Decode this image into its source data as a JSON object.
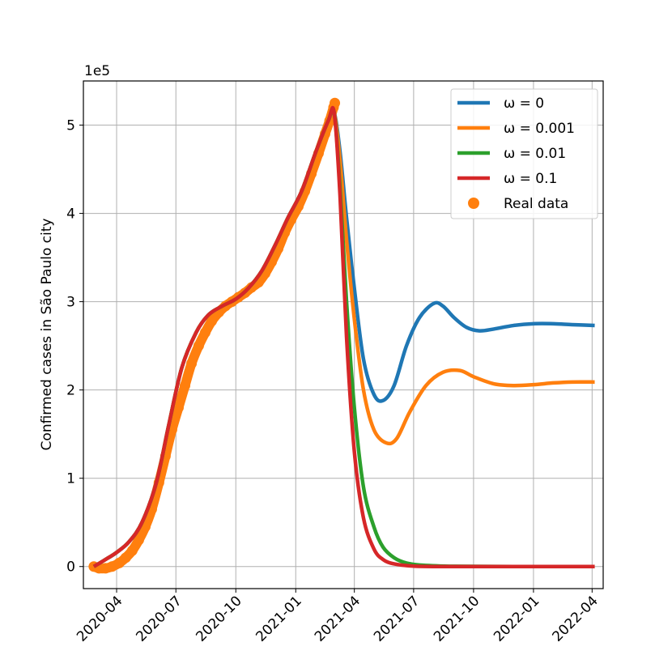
{
  "chart_data": {
    "type": "line",
    "ylabel": "Confirmed cases in São Paulo city",
    "offset_text": "1e5",
    "x_axis": {
      "type": "date",
      "range": [
        "2020-02-10",
        "2022-04-18"
      ],
      "ticks": [
        "2020-04-01",
        "2020-07-01",
        "2020-10-01",
        "2021-01-01",
        "2021-04-01",
        "2021-07-01",
        "2021-10-01",
        "2022-01-01",
        "2022-04-01"
      ],
      "tick_labels": [
        "2020-04",
        "2020-07",
        "2020-10",
        "2021-01",
        "2021-04",
        "2021-07",
        "2021-10",
        "2022-01",
        "2022-04"
      ]
    },
    "y_axis": {
      "range": [
        -0.25,
        5.5
      ],
      "ticks": [
        0,
        1,
        2,
        3,
        4,
        5
      ],
      "tick_labels": [
        "0",
        "1",
        "2",
        "3",
        "4",
        "5"
      ]
    },
    "grid": true,
    "legend_position": "top-right",
    "series": [
      {
        "name": "ω = 0",
        "kind": "line",
        "color": "#1f77b4",
        "points": [
          [
            "2020-02-26",
            0
          ],
          [
            "2020-03-15",
            0.08
          ],
          [
            "2020-04-01",
            0.16
          ],
          [
            "2020-04-20",
            0.28
          ],
          [
            "2020-05-10",
            0.5
          ],
          [
            "2020-06-01",
            0.95
          ],
          [
            "2020-06-20",
            1.6
          ],
          [
            "2020-07-10",
            2.25
          ],
          [
            "2020-08-01",
            2.65
          ],
          [
            "2020-08-20",
            2.85
          ],
          [
            "2020-09-10",
            2.95
          ],
          [
            "2020-10-01",
            3.03
          ],
          [
            "2020-10-20",
            3.15
          ],
          [
            "2020-11-10",
            3.35
          ],
          [
            "2020-12-01",
            3.65
          ],
          [
            "2020-12-20",
            3.95
          ],
          [
            "2021-01-10",
            4.25
          ],
          [
            "2021-02-01",
            4.7
          ],
          [
            "2021-02-20",
            5.05
          ],
          [
            "2021-03-01",
            5.14
          ],
          [
            "2021-03-10",
            4.7
          ],
          [
            "2021-03-20",
            3.95
          ],
          [
            "2021-04-01",
            3.15
          ],
          [
            "2021-04-15",
            2.35
          ],
          [
            "2021-05-01",
            1.95
          ],
          [
            "2021-05-15",
            1.88
          ],
          [
            "2021-06-01",
            2.05
          ],
          [
            "2021-06-20",
            2.5
          ],
          [
            "2021-07-10",
            2.82
          ],
          [
            "2021-08-01",
            2.98
          ],
          [
            "2021-08-15",
            2.95
          ],
          [
            "2021-09-01",
            2.82
          ],
          [
            "2021-09-20",
            2.71
          ],
          [
            "2021-10-10",
            2.67
          ],
          [
            "2021-11-01",
            2.69
          ],
          [
            "2021-12-01",
            2.73
          ],
          [
            "2022-01-01",
            2.75
          ],
          [
            "2022-02-01",
            2.75
          ],
          [
            "2022-03-01",
            2.74
          ],
          [
            "2022-04-05",
            2.73
          ]
        ]
      },
      {
        "name": "ω = 0.001",
        "kind": "line",
        "color": "#ff7f0e",
        "points": [
          [
            "2020-02-26",
            0
          ],
          [
            "2020-03-15",
            0.08
          ],
          [
            "2020-04-01",
            0.16
          ],
          [
            "2020-04-20",
            0.28
          ],
          [
            "2020-05-10",
            0.5
          ],
          [
            "2020-06-01",
            0.95
          ],
          [
            "2020-06-20",
            1.6
          ],
          [
            "2020-07-10",
            2.25
          ],
          [
            "2020-08-01",
            2.65
          ],
          [
            "2020-08-20",
            2.85
          ],
          [
            "2020-09-10",
            2.95
          ],
          [
            "2020-10-01",
            3.03
          ],
          [
            "2020-10-20",
            3.15
          ],
          [
            "2020-11-10",
            3.35
          ],
          [
            "2020-12-01",
            3.65
          ],
          [
            "2020-12-20",
            3.95
          ],
          [
            "2021-01-10",
            4.25
          ],
          [
            "2021-02-01",
            4.7
          ],
          [
            "2021-02-20",
            5.05
          ],
          [
            "2021-03-01",
            5.14
          ],
          [
            "2021-03-10",
            4.6
          ],
          [
            "2021-03-20",
            3.7
          ],
          [
            "2021-04-01",
            2.8
          ],
          [
            "2021-04-15",
            2.0
          ],
          [
            "2021-05-01",
            1.55
          ],
          [
            "2021-05-20",
            1.4
          ],
          [
            "2021-06-05",
            1.45
          ],
          [
            "2021-06-25",
            1.75
          ],
          [
            "2021-07-20",
            2.05
          ],
          [
            "2021-08-15",
            2.2
          ],
          [
            "2021-09-10",
            2.22
          ],
          [
            "2021-10-01",
            2.15
          ],
          [
            "2021-11-01",
            2.07
          ],
          [
            "2021-12-01",
            2.05
          ],
          [
            "2022-01-01",
            2.06
          ],
          [
            "2022-02-01",
            2.08
          ],
          [
            "2022-03-01",
            2.09
          ],
          [
            "2022-04-05",
            2.09
          ]
        ]
      },
      {
        "name": "ω = 0.01",
        "kind": "line",
        "color": "#2ca02c",
        "points": [
          [
            "2020-02-26",
            0
          ],
          [
            "2020-03-15",
            0.08
          ],
          [
            "2020-04-01",
            0.16
          ],
          [
            "2020-04-20",
            0.28
          ],
          [
            "2020-05-10",
            0.5
          ],
          [
            "2020-06-01",
            0.95
          ],
          [
            "2020-06-20",
            1.6
          ],
          [
            "2020-07-10",
            2.25
          ],
          [
            "2020-08-01",
            2.65
          ],
          [
            "2020-08-20",
            2.85
          ],
          [
            "2020-09-10",
            2.95
          ],
          [
            "2020-10-01",
            3.03
          ],
          [
            "2020-10-20",
            3.15
          ],
          [
            "2020-11-10",
            3.35
          ],
          [
            "2020-12-01",
            3.65
          ],
          [
            "2020-12-20",
            3.95
          ],
          [
            "2021-01-10",
            4.25
          ],
          [
            "2021-02-01",
            4.7
          ],
          [
            "2021-02-20",
            5.05
          ],
          [
            "2021-03-01",
            5.14
          ],
          [
            "2021-03-10",
            4.3
          ],
          [
            "2021-03-20",
            3.0
          ],
          [
            "2021-04-01",
            1.8
          ],
          [
            "2021-04-15",
            0.9
          ],
          [
            "2021-05-01",
            0.45
          ],
          [
            "2021-05-15",
            0.22
          ],
          [
            "2021-06-01",
            0.1
          ],
          [
            "2021-06-20",
            0.04
          ],
          [
            "2021-07-15",
            0.015
          ],
          [
            "2021-09-01",
            0.003
          ],
          [
            "2021-12-01",
            0
          ],
          [
            "2022-04-05",
            0
          ]
        ]
      },
      {
        "name": "ω = 0.1",
        "kind": "line",
        "color": "#d62728",
        "points": [
          [
            "2020-02-26",
            0
          ],
          [
            "2020-03-15",
            0.08
          ],
          [
            "2020-04-01",
            0.16
          ],
          [
            "2020-04-20",
            0.28
          ],
          [
            "2020-05-10",
            0.5
          ],
          [
            "2020-06-01",
            0.95
          ],
          [
            "2020-06-20",
            1.6
          ],
          [
            "2020-07-10",
            2.25
          ],
          [
            "2020-08-01",
            2.65
          ],
          [
            "2020-08-20",
            2.85
          ],
          [
            "2020-09-10",
            2.95
          ],
          [
            "2020-10-01",
            3.03
          ],
          [
            "2020-10-20",
            3.15
          ],
          [
            "2020-11-10",
            3.35
          ],
          [
            "2020-12-01",
            3.65
          ],
          [
            "2020-12-20",
            3.95
          ],
          [
            "2021-01-10",
            4.25
          ],
          [
            "2021-02-01",
            4.7
          ],
          [
            "2021-02-20",
            5.05
          ],
          [
            "2021-03-01",
            5.14
          ],
          [
            "2021-03-10",
            4.2
          ],
          [
            "2021-03-20",
            2.6
          ],
          [
            "2021-04-01",
            1.3
          ],
          [
            "2021-04-15",
            0.55
          ],
          [
            "2021-05-01",
            0.2
          ],
          [
            "2021-05-15",
            0.08
          ],
          [
            "2021-06-01",
            0.03
          ],
          [
            "2021-07-01",
            0.005
          ],
          [
            "2021-09-01",
            0
          ],
          [
            "2022-04-05",
            0
          ]
        ]
      },
      {
        "name": "Real data",
        "kind": "scatter",
        "color": "#ff7f0e",
        "points": [
          [
            "2020-02-26",
            0
          ],
          [
            "2020-03-05",
            -0.02
          ],
          [
            "2020-03-15",
            -0.02
          ],
          [
            "2020-03-25",
            0.0
          ],
          [
            "2020-04-05",
            0.04
          ],
          [
            "2020-04-15",
            0.1
          ],
          [
            "2020-04-25",
            0.18
          ],
          [
            "2020-05-05",
            0.3
          ],
          [
            "2020-05-15",
            0.45
          ],
          [
            "2020-05-25",
            0.65
          ],
          [
            "2020-06-05",
            0.95
          ],
          [
            "2020-06-15",
            1.25
          ],
          [
            "2020-06-25",
            1.55
          ],
          [
            "2020-07-05",
            1.8
          ],
          [
            "2020-07-15",
            2.05
          ],
          [
            "2020-07-25",
            2.3
          ],
          [
            "2020-08-05",
            2.5
          ],
          [
            "2020-08-15",
            2.65
          ],
          [
            "2020-08-25",
            2.78
          ],
          [
            "2020-09-05",
            2.88
          ],
          [
            "2020-09-15",
            2.95
          ],
          [
            "2020-09-25",
            3.0
          ],
          [
            "2020-10-05",
            3.05
          ],
          [
            "2020-10-15",
            3.1
          ],
          [
            "2020-10-25",
            3.16
          ],
          [
            "2020-11-05",
            3.22
          ],
          [
            "2020-11-15",
            3.32
          ],
          [
            "2020-11-25",
            3.45
          ],
          [
            "2020-12-05",
            3.6
          ],
          [
            "2020-12-15",
            3.78
          ],
          [
            "2020-12-25",
            3.93
          ],
          [
            "2021-01-05",
            4.08
          ],
          [
            "2021-01-15",
            4.25
          ],
          [
            "2021-01-25",
            4.45
          ],
          [
            "2021-02-05",
            4.68
          ],
          [
            "2021-02-15",
            4.9
          ],
          [
            "2021-02-22",
            5.05
          ],
          [
            "2021-02-28",
            5.2
          ],
          [
            "2021-03-02",
            5.25
          ]
        ]
      }
    ]
  }
}
